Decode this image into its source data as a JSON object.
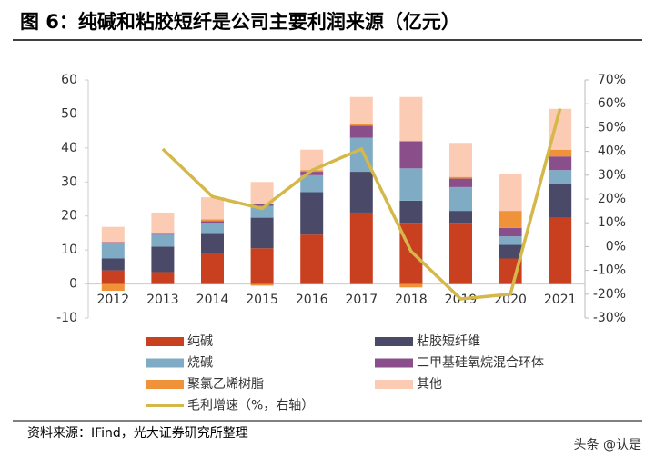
{
  "chart_data": {
    "type": "bar",
    "title": "图 6：纯碱和粘胶短纤是公司主要利润来源（亿元）",
    "source": "资料来源：IFind，光大证券研究所整理",
    "watermark": "头条 @认是",
    "stacked": true,
    "categories": [
      "2012",
      "2013",
      "2014",
      "2015",
      "2016",
      "2017",
      "2018",
      "2019",
      "2020",
      "2021"
    ],
    "ylim": [
      -10,
      60
    ],
    "yticks": [
      -10,
      0,
      10,
      20,
      30,
      40,
      50,
      60
    ],
    "y2lim": [
      -30,
      70
    ],
    "y2ticks": [
      {
        "value": -30,
        "label": "-30%"
      },
      {
        "value": -20,
        "label": "-20%"
      },
      {
        "value": -10,
        "label": "-10%"
      },
      {
        "value": 0,
        "label": "0%"
      },
      {
        "value": 10,
        "label": "10%"
      },
      {
        "value": 20,
        "label": "20%"
      },
      {
        "value": 30,
        "label": "30%"
      },
      {
        "value": 40,
        "label": "40%"
      },
      {
        "value": 50,
        "label": "50%"
      },
      {
        "value": 60,
        "label": "60%"
      },
      {
        "value": 70,
        "label": "70%"
      }
    ],
    "series": [
      {
        "name": "纯碱",
        "color": "#c8401f",
        "values": [
          4,
          3.5,
          9,
          10.5,
          14.5,
          21,
          18,
          18,
          7.5,
          19.5
        ]
      },
      {
        "name": "粘胶短纤维",
        "color": "#4a4a68",
        "values": [
          3.5,
          7.5,
          6,
          9,
          12.5,
          12,
          6.5,
          3.5,
          4,
          10
        ]
      },
      {
        "name": "烧碱",
        "color": "#7fabc4",
        "values": [
          4.5,
          3.5,
          3,
          3.5,
          5,
          10,
          9.5,
          7,
          2.5,
          4
        ]
      },
      {
        "name": "二甲基硅氧烷混合环体",
        "color": "#8a4f8a",
        "values": [
          0.3,
          0.5,
          0.5,
          0.5,
          1,
          3.5,
          8,
          2.5,
          2.5,
          4
        ]
      },
      {
        "name": "聚氯乙烯树脂",
        "color": "#f0923a",
        "values": [
          -2,
          0,
          0.5,
          -0.5,
          0.5,
          0.5,
          -1,
          0.5,
          5,
          2
        ]
      },
      {
        "name": "其他",
        "color": "#fbcbb4",
        "values": [
          4.5,
          6,
          6.5,
          6.5,
          6,
          8,
          13,
          10,
          11,
          12
        ]
      },
      {
        "name": "毛利增速（%，右轴）",
        "type": "line",
        "axis": "y2",
        "color": "#d4b84a",
        "values": [
          null,
          41,
          21,
          16,
          32,
          41,
          -2,
          -22,
          -20,
          58
        ]
      }
    ]
  }
}
